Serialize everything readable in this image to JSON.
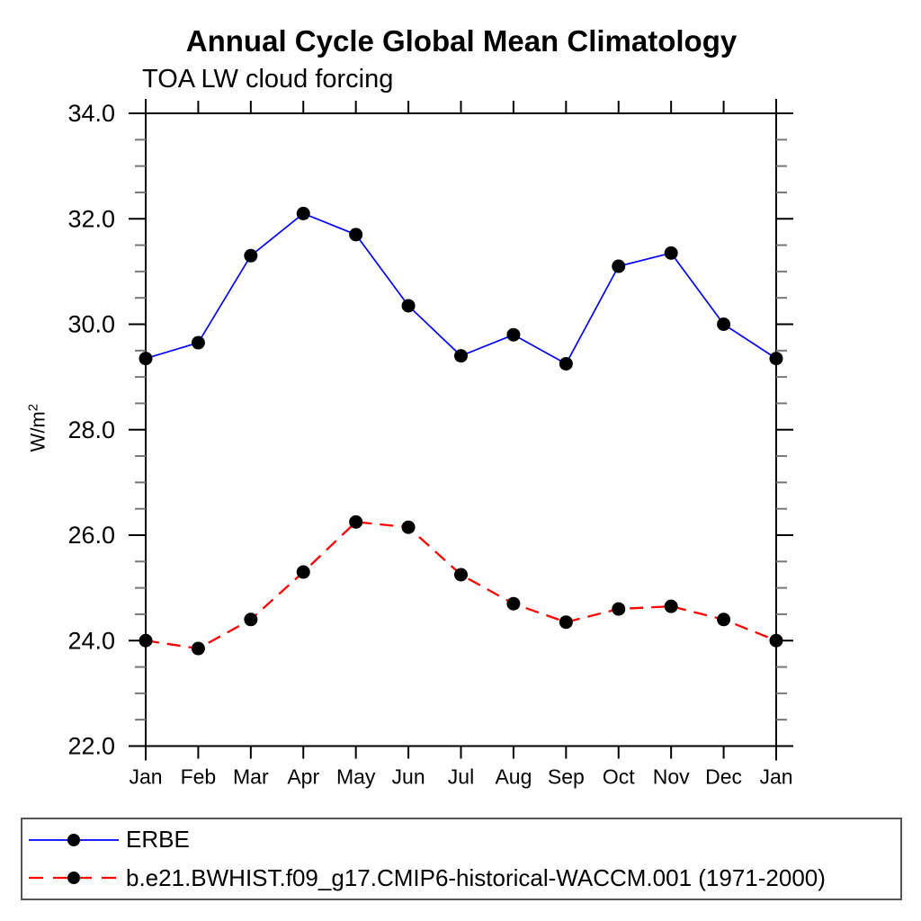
{
  "page": {
    "background_color": "#ffffff",
    "text_color": "#000000"
  },
  "chart_data": {
    "type": "line",
    "title": "Annual Cycle Global Mean Climatology",
    "subtitle": "TOA LW cloud forcing",
    "ylabel": "W/m²",
    "ylabel_base": "W/m",
    "ylabel_exponent": "2",
    "xlabel": "",
    "categories": [
      "Jan",
      "Feb",
      "Mar",
      "Apr",
      "May",
      "Jun",
      "Jul",
      "Aug",
      "Sep",
      "Oct",
      "Nov",
      "Dec",
      "Jan"
    ],
    "ylim": [
      22.0,
      34.0
    ],
    "yticks": [
      22.0,
      24.0,
      26.0,
      28.0,
      30.0,
      32.0,
      34.0
    ],
    "ytick_labels": [
      "22.0",
      "24.0",
      "26.0",
      "28.0",
      "30.0",
      "32.0",
      "34.0"
    ],
    "minor_tick_step": 0.5,
    "grid": false,
    "legend_position": "bottom",
    "axis_color": "#000000",
    "minor_tick_color": "#777777",
    "marker_color": "#000000",
    "series": [
      {
        "name": "ERBE",
        "color": "#0000ff",
        "line_style": "solid",
        "marker": "circle",
        "values": [
          29.35,
          29.65,
          31.3,
          32.1,
          31.7,
          30.35,
          29.4,
          29.8,
          29.25,
          31.1,
          31.35,
          30.0,
          29.35
        ]
      },
      {
        "name": "b.e21.BWHIST.f09_g17.CMIP6-historical-WACCM.001 (1971-2000)",
        "color": "#ff0000",
        "line_style": "dashed",
        "marker": "circle",
        "values": [
          24.0,
          23.85,
          24.4,
          25.3,
          26.25,
          26.15,
          25.25,
          24.7,
          24.35,
          24.6,
          24.65,
          24.4,
          24.0
        ]
      }
    ]
  }
}
